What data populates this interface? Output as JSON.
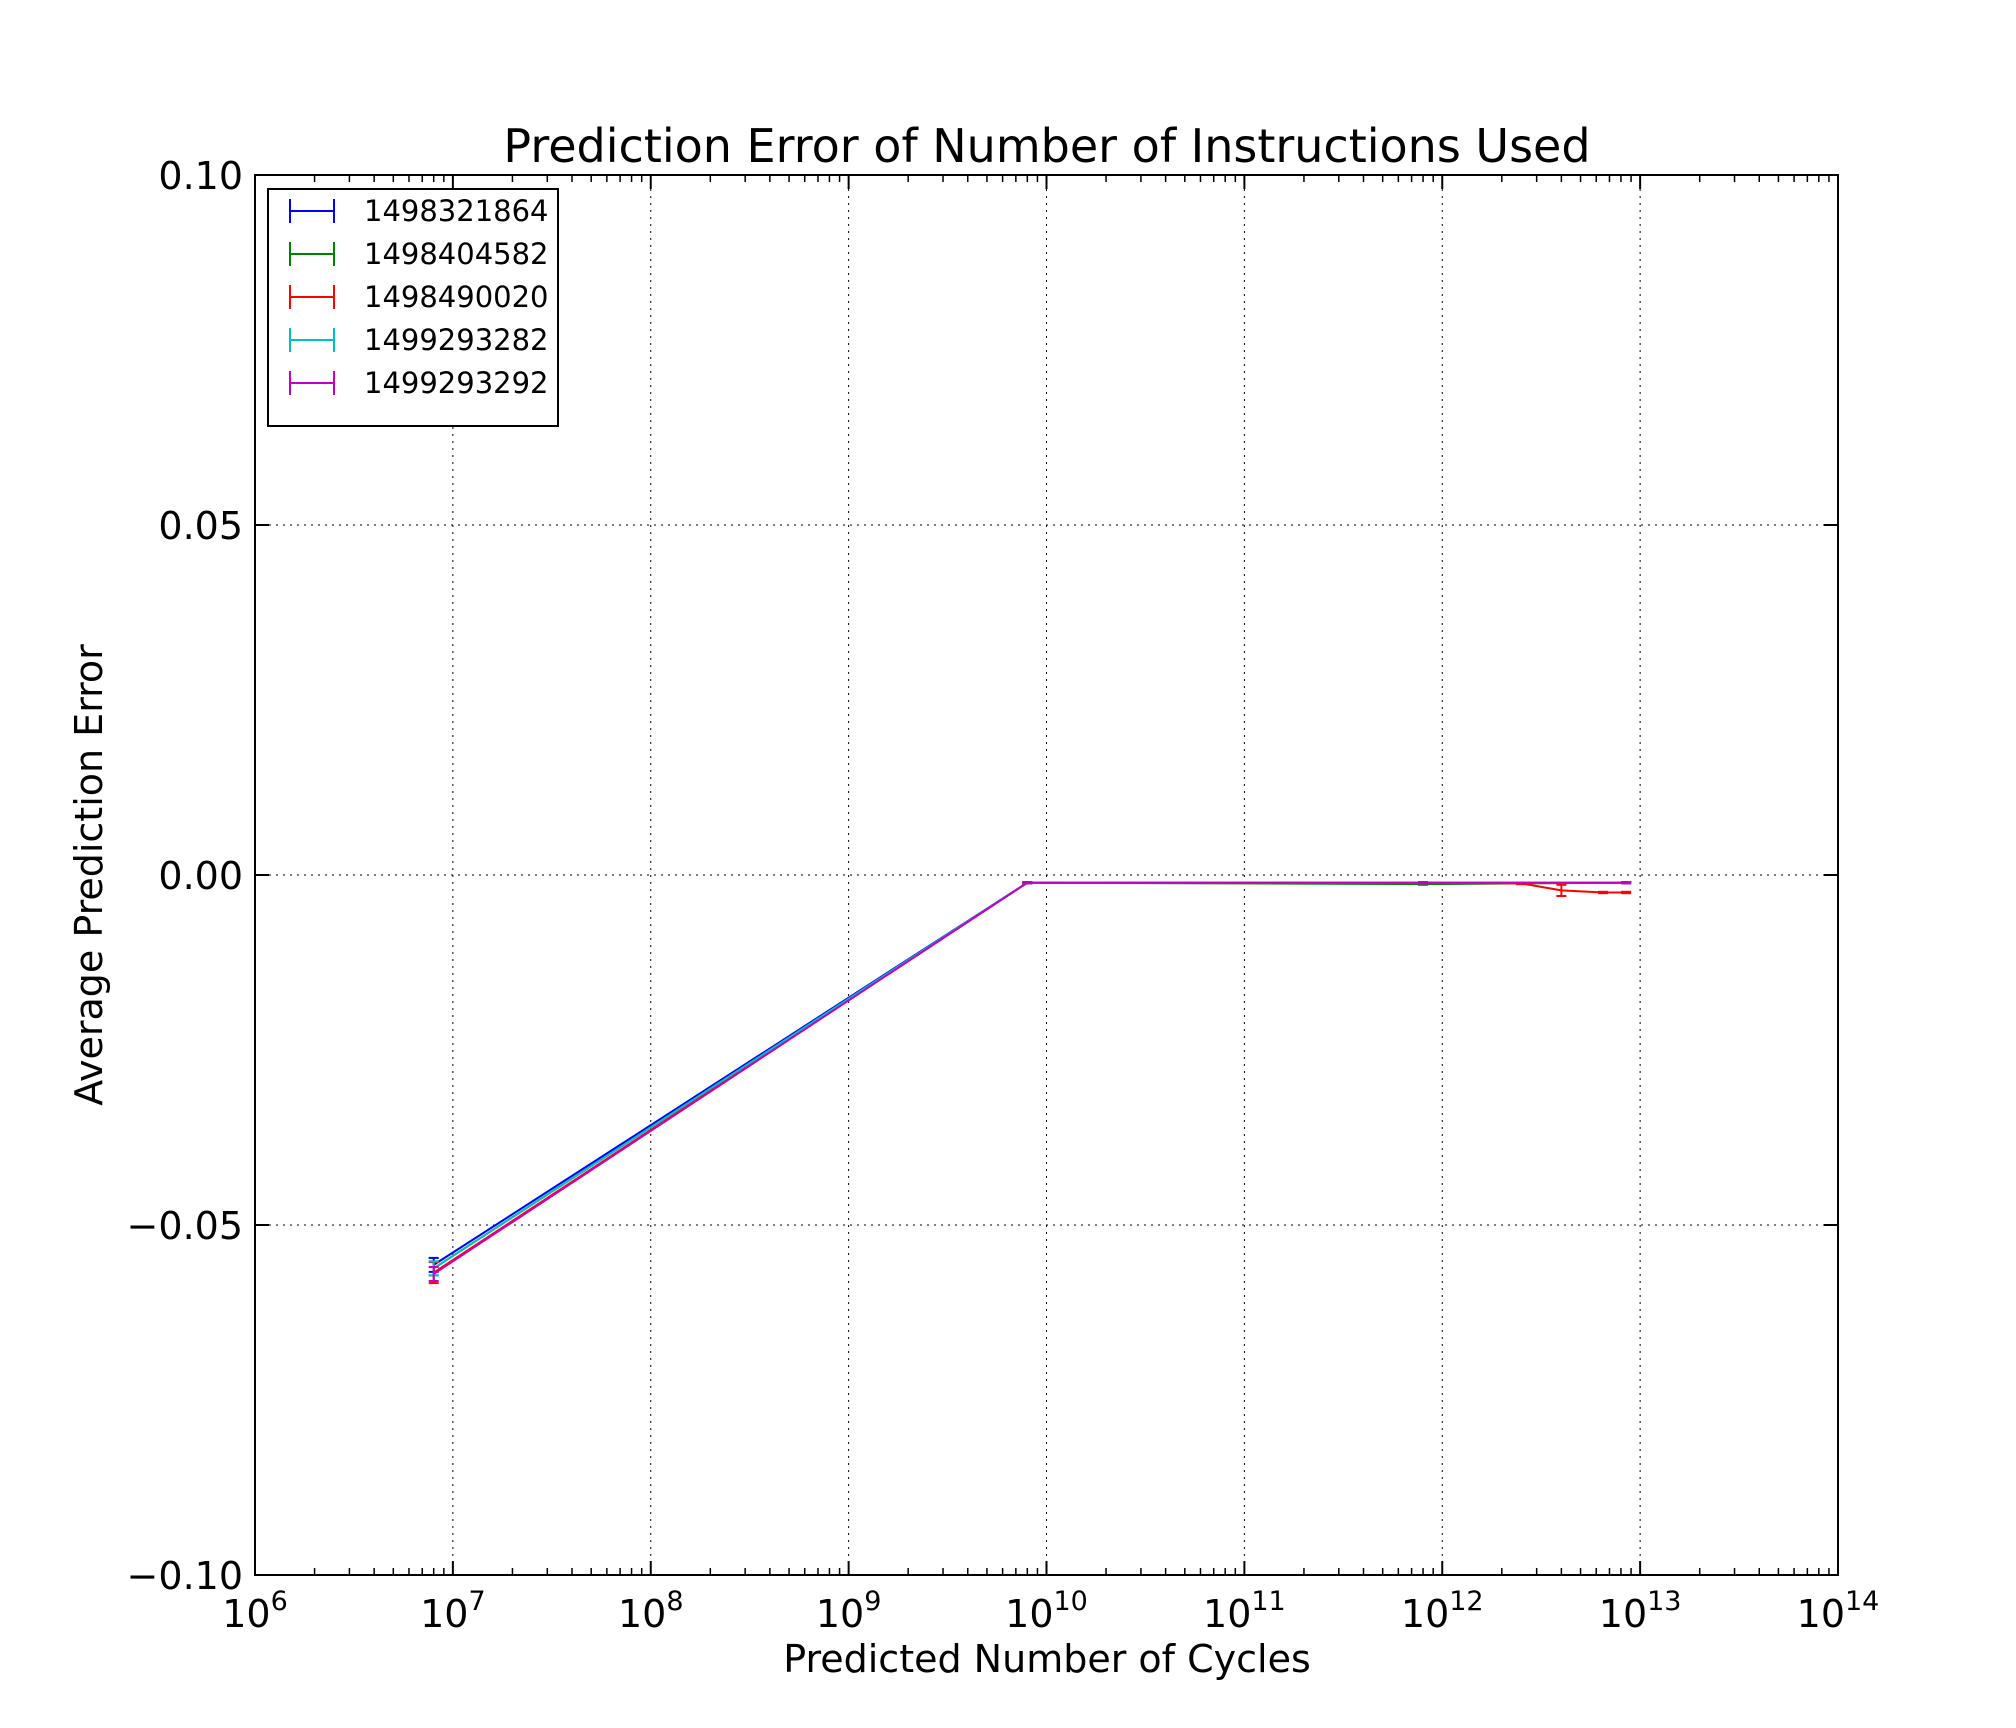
{
  "chart_data": {
    "type": "line",
    "title": "Prediction Error of Number of Instructions Used",
    "xlabel": "Predicted Number of Cycles",
    "ylabel": "Average Prediction Error",
    "xscale": "log",
    "xlim": [
      1000000,
      100000000000000
    ],
    "ylim": [
      -0.1,
      0.1
    ],
    "grid": true,
    "legend_position": "top-left",
    "x_ticks": [
      {
        "base": "10",
        "exp": "6"
      },
      {
        "base": "10",
        "exp": "7"
      },
      {
        "base": "10",
        "exp": "8"
      },
      {
        "base": "10",
        "exp": "9"
      },
      {
        "base": "10",
        "exp": "10"
      },
      {
        "base": "10",
        "exp": "11"
      },
      {
        "base": "10",
        "exp": "12"
      },
      {
        "base": "10",
        "exp": "13"
      },
      {
        "base": "10",
        "exp": "14"
      }
    ],
    "y_ticks": [
      "0.10",
      "0.05",
      "0.00",
      "−0.05",
      "−0.10"
    ],
    "series": [
      {
        "name": "1498321864",
        "color": "#0000ff",
        "x": [
          8000000,
          8000000000,
          800000000000,
          8500000000000
        ],
        "y": [
          -0.0557,
          -0.0011,
          -0.0011,
          -0.0011
        ],
        "err": [
          0.001,
          0.0001,
          0.0001,
          0.0001
        ]
      },
      {
        "name": "1498404582",
        "color": "#008000",
        "x": [
          8000000,
          8000000000,
          800000000000,
          8500000000000
        ],
        "y": [
          -0.0562,
          -0.0011,
          -0.0013,
          -0.0011
        ],
        "err": [
          0.001,
          0.0001,
          0.0001,
          0.0001
        ]
      },
      {
        "name": "1498490020",
        "color": "#ff0000",
        "x": [
          8000000,
          8000000000,
          800000000000,
          2500000000000,
          4000000000000,
          6500000000000,
          8500000000000
        ],
        "y": [
          -0.0568,
          -0.0011,
          -0.0011,
          -0.0012,
          -0.0022,
          -0.0025,
          -0.0025
        ],
        "err": [
          0.0015,
          0.0001,
          0.0001,
          0.0001,
          0.0008,
          0.0001,
          0.0001
        ]
      },
      {
        "name": "1499293282",
        "color": "#00bfbf",
        "x": [
          8000000,
          8000000000,
          800000000000,
          8500000000000
        ],
        "y": [
          -0.0562,
          -0.0011,
          -0.0011,
          -0.0011
        ],
        "err": [
          0.001,
          0.0001,
          0.0001,
          0.0001
        ]
      },
      {
        "name": "1499293292",
        "color": "#bf00bf",
        "x": [
          8000000,
          8000000000,
          800000000000,
          8500000000000
        ],
        "y": [
          -0.057,
          -0.0011,
          -0.0011,
          -0.0011
        ],
        "err": [
          0.001,
          0.0001,
          0.0001,
          0.0001
        ]
      }
    ]
  }
}
